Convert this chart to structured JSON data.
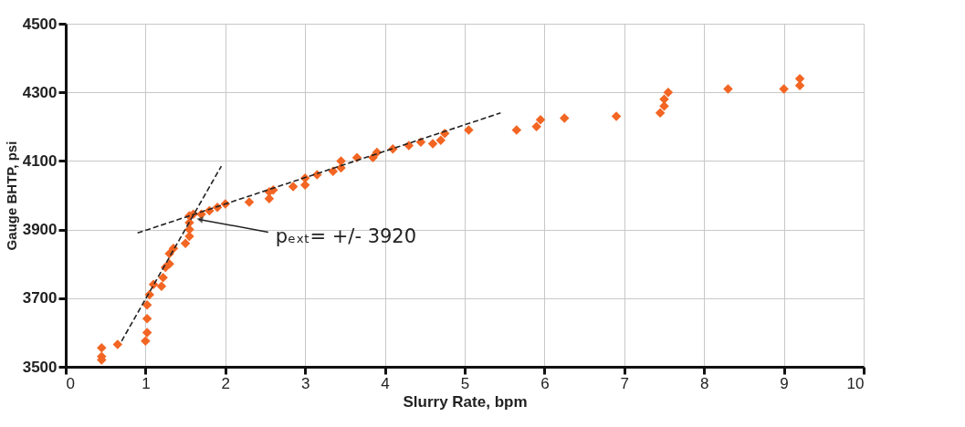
{
  "chart_data": {
    "type": "scatter",
    "xlabel": "Slurry Rate, bpm",
    "ylabel": "Gauge BHTP, psi",
    "xlim": [
      0,
      10
    ],
    "xticks": [
      0,
      1,
      2,
      3,
      4,
      5,
      6,
      7,
      8,
      9,
      10
    ],
    "ylim": [
      3500,
      4500
    ],
    "yticks": [
      3500,
      3700,
      3900,
      4100,
      4300,
      4500
    ],
    "grid": true,
    "series": [
      {
        "marker": "diamond",
        "color": "#f26522",
        "x": [
          0.45,
          0.45,
          0.45,
          0.65,
          1.0,
          1.02,
          1.02,
          1.02,
          1.05,
          1.1,
          1.2,
          1.22,
          1.25,
          1.3,
          1.3,
          1.35,
          1.5,
          1.55,
          1.55,
          1.55,
          1.55,
          1.6,
          1.7,
          1.8,
          1.9,
          2.0,
          2.3,
          2.55,
          2.55,
          2.6,
          2.85,
          3.0,
          3.0,
          3.15,
          3.35,
          3.45,
          3.45,
          3.65,
          3.85,
          3.9,
          4.1,
          4.3,
          4.45,
          4.6,
          4.7,
          4.75,
          5.05,
          5.65,
          5.9,
          5.95,
          6.25,
          6.9,
          7.45,
          7.5,
          7.5,
          7.55,
          8.3,
          9.0,
          9.2,
          9.2
        ],
        "values": [
          3520,
          3530,
          3555,
          3565,
          3575,
          3600,
          3640,
          3680,
          3710,
          3740,
          3735,
          3760,
          3790,
          3800,
          3830,
          3845,
          3860,
          3880,
          3900,
          3920,
          3940,
          3945,
          3945,
          3955,
          3965,
          3975,
          3980,
          3990,
          4010,
          4015,
          4025,
          4030,
          4050,
          4060,
          4070,
          4080,
          4100,
          4110,
          4110,
          4125,
          4135,
          4145,
          4155,
          4150,
          4160,
          4180,
          4190,
          4190,
          4200,
          4220,
          4225,
          4230,
          4240,
          4260,
          4280,
          4300,
          4310,
          4310,
          4320,
          4340
        ]
      },
      {
        "type": "line",
        "color": "#222222",
        "line_style": "dashed",
        "x": [
          0.7,
          1.95
        ],
        "values": [
          3575,
          4085
        ]
      },
      {
        "type": "line",
        "color": "#222222",
        "line_style": "dashed",
        "x": [
          0.9,
          5.45
        ],
        "values": [
          3890,
          4240
        ]
      }
    ],
    "annotations": [
      {
        "text": "pₑₓₜ= +/- 3920",
        "x": 1.6,
        "y": 3935
      }
    ]
  }
}
